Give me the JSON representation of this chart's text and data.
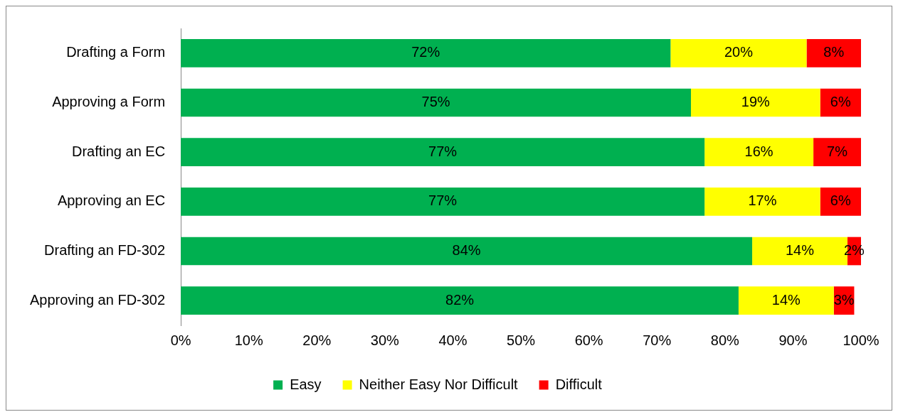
{
  "chart_data": {
    "type": "bar",
    "orientation": "horizontal",
    "stacked": true,
    "categories": [
      "Drafting a Form",
      "Approving a Form",
      "Drafting an EC",
      "Approving an EC",
      "Drafting an FD-302",
      "Approving an FD-302"
    ],
    "series": [
      {
        "name": "Easy",
        "color": "#00b050",
        "values": [
          72,
          75,
          77,
          77,
          84,
          82
        ],
        "value_labels": [
          "72%",
          "75%",
          "77%",
          "77%",
          "84%",
          "82%"
        ]
      },
      {
        "name": "Neither Easy Nor Difficult",
        "color": "#ffff00",
        "values": [
          20,
          19,
          16,
          17,
          14,
          14
        ],
        "value_labels": [
          "20%",
          "19%",
          "16%",
          "17%",
          "14%",
          "14%"
        ]
      },
      {
        "name": "Difficult",
        "color": "#ff0000",
        "values": [
          8,
          6,
          7,
          6,
          2,
          3
        ],
        "value_labels": [
          "8%",
          "6%",
          "7%",
          "6%",
          "2%",
          "3%"
        ]
      }
    ],
    "xlim": [
      0,
      100
    ],
    "xticks": [
      {
        "value": 0,
        "label": "0%"
      },
      {
        "value": 10,
        "label": "10%"
      },
      {
        "value": 20,
        "label": "20%"
      },
      {
        "value": 30,
        "label": "30%"
      },
      {
        "value": 40,
        "label": "40%"
      },
      {
        "value": 50,
        "label": "50%"
      },
      {
        "value": 60,
        "label": "60%"
      },
      {
        "value": 70,
        "label": "70%"
      },
      {
        "value": 80,
        "label": "80%"
      },
      {
        "value": 90,
        "label": "90%"
      },
      {
        "value": 100,
        "label": "100%"
      }
    ],
    "grid": false,
    "legend": "bottom"
  }
}
